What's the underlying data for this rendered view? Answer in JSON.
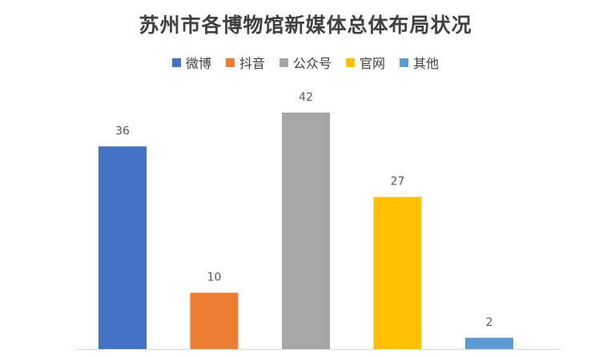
{
  "chart_data": {
    "type": "bar",
    "title": "苏州市各博物馆新媒体总体布局状况",
    "categories": [
      "微博",
      "抖音",
      "公众号",
      "官网",
      "其他"
    ],
    "values": [
      36,
      10,
      42,
      27,
      2
    ],
    "colors": [
      "#4472C4",
      "#ED7D31",
      "#A5A5A5",
      "#FFC000",
      "#5B9BD5"
    ],
    "legend_position": "top",
    "grid": false,
    "ylim": [
      0,
      42
    ]
  }
}
